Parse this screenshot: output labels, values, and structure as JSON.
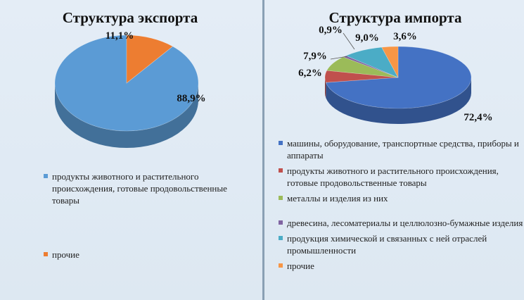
{
  "chart_data": [
    {
      "type": "pie",
      "title": "Структура экспорта",
      "series": [
        {
          "name": "продукты животного и растительного происхождения, готовые продовольственные товары",
          "value": 88.9,
          "label": "88,9%",
          "color": "#5b9bd5"
        },
        {
          "name": "прочие",
          "value": 11.1,
          "label": "11,1%",
          "color": "#ed7d31"
        }
      ]
    },
    {
      "type": "pie",
      "title": "Структура импорта",
      "series": [
        {
          "name": "машины, оборудование, транспортные средства, приборы и аппараты",
          "value": 72.4,
          "label": "72,4%",
          "color": "#4472c4"
        },
        {
          "name": "продукты животного и растительного происхождения, готовые продовольственные товары",
          "value": 6.2,
          "label": "6,2%",
          "color": "#c0504d"
        },
        {
          "name": "металлы и изделия из них",
          "value": 7.9,
          "label": "7,9%",
          "color": "#9bbb59"
        },
        {
          "name": "древесина, лесоматериалы и целлюлозно-бумажные изделия",
          "value": 0.9,
          "label": "0,9%",
          "color": "#8064a2"
        },
        {
          "name": "продукция химической и связанных с ней отраслей промышленности",
          "value": 9.0,
          "label": "9,0%",
          "color": "#4bacc6"
        },
        {
          "name": "прочие",
          "value": 3.6,
          "label": "3,6%",
          "color": "#f79646"
        }
      ]
    }
  ]
}
